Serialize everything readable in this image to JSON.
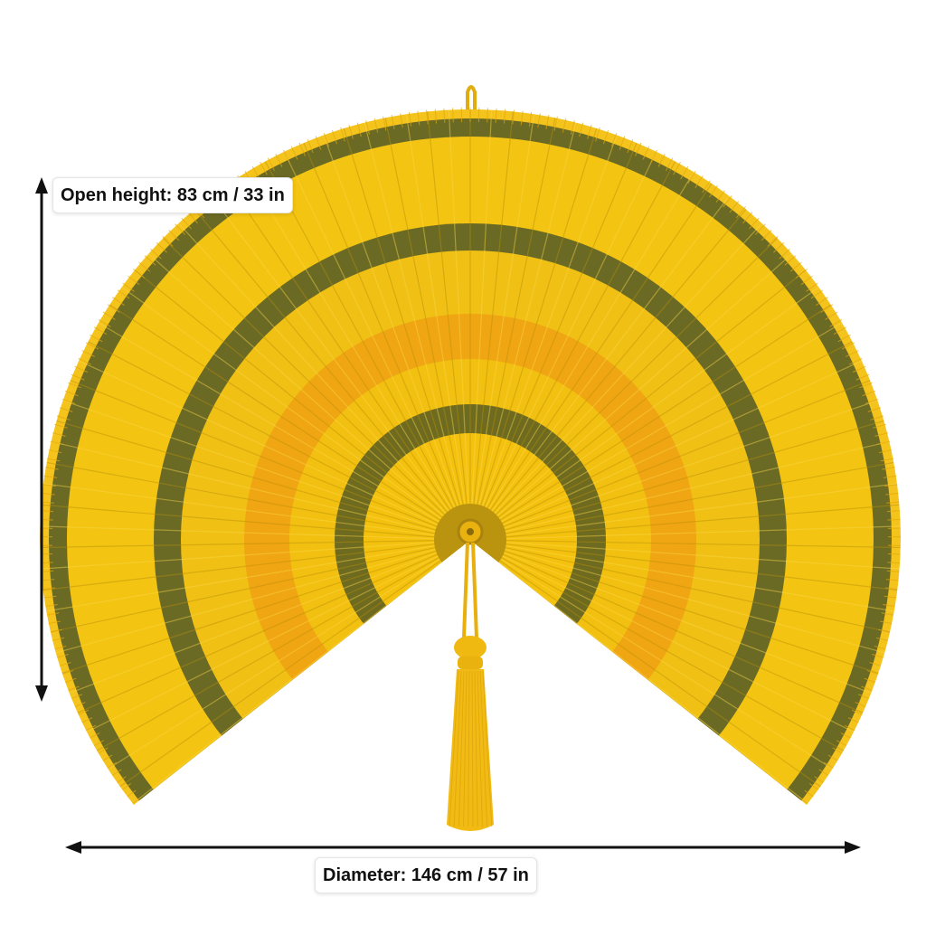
{
  "image": {
    "subject": "folding-fan",
    "colors": {
      "fan_yellow": "#f2c30f",
      "fan_light": "#f6cf2a",
      "stripe_olive": "#6b6a25",
      "inner_orange": "#f0a512",
      "arrow": "#111111"
    }
  },
  "dimensions": {
    "height_label": "Open height: 83 cm / 33 in",
    "diameter_label": "Diameter: 146 cm / 57 in"
  }
}
